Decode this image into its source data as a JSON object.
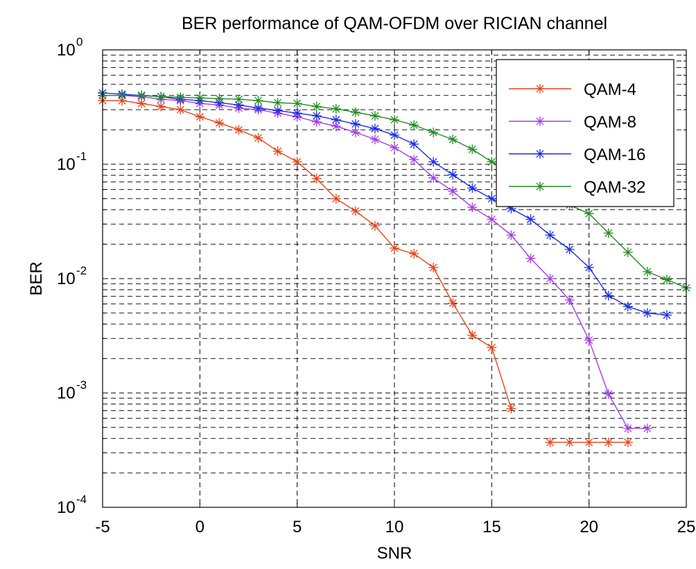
{
  "chart_data": {
    "type": "line",
    "title": "BER performance of QAM-OFDM over RICIAN channel",
    "xlabel": "SNR",
    "ylabel": "BER",
    "xlim": [
      -5,
      25
    ],
    "ylim": [
      0.0001,
      1
    ],
    "yscale": "log",
    "grid": true,
    "legend_position": "top-right",
    "x_ticks": [
      "-5",
      "0",
      "5",
      "10",
      "15",
      "20",
      "25"
    ],
    "y_ticks": [
      {
        "base": "10",
        "exp": "0"
      },
      {
        "base": "10",
        "exp": "-1"
      },
      {
        "base": "10",
        "exp": "-2"
      },
      {
        "base": "10",
        "exp": "-3"
      },
      {
        "base": "10",
        "exp": "-4"
      }
    ],
    "series": [
      {
        "name": "QAM-4",
        "color": "#e8431a",
        "points": [
          [
            -5,
            0.36
          ],
          [
            -4,
            0.36
          ],
          [
            -3,
            0.34
          ],
          [
            -2,
            0.32
          ],
          [
            -1,
            0.3
          ],
          [
            0,
            0.26
          ],
          [
            1,
            0.23
          ],
          [
            2,
            0.2
          ],
          [
            3,
            0.17
          ],
          [
            4,
            0.13
          ],
          [
            5,
            0.105
          ],
          [
            6,
            0.075
          ],
          [
            7,
            0.05
          ],
          [
            8,
            0.039
          ],
          [
            9,
            0.029
          ],
          [
            10,
            0.0185
          ],
          [
            11,
            0.0165
          ],
          [
            12,
            0.0125
          ],
          [
            13,
            0.0061
          ],
          [
            14,
            0.0032
          ],
          [
            15,
            0.0025
          ],
          [
            16,
            0.00073
          ],
          null,
          [
            18,
            0.00037
          ],
          [
            19,
            0.00037
          ],
          [
            20,
            0.00037
          ],
          [
            21,
            0.00037
          ],
          [
            22,
            0.00037
          ]
        ]
      },
      {
        "name": "QAM-8",
        "color": "#a43ee8",
        "points": [
          [
            -5,
            0.4
          ],
          [
            -4,
            0.4
          ],
          [
            -3,
            0.39
          ],
          [
            -2,
            0.37
          ],
          [
            -1,
            0.36
          ],
          [
            0,
            0.34
          ],
          [
            1,
            0.33
          ],
          [
            2,
            0.31
          ],
          [
            3,
            0.3
          ],
          [
            4,
            0.28
          ],
          [
            5,
            0.26
          ],
          [
            6,
            0.235
          ],
          [
            7,
            0.215
          ],
          [
            8,
            0.19
          ],
          [
            9,
            0.165
          ],
          [
            10,
            0.14
          ],
          [
            11,
            0.11
          ],
          [
            12,
            0.076
          ],
          [
            13,
            0.058
          ],
          [
            14,
            0.042
          ],
          [
            15,
            0.033
          ],
          [
            16,
            0.024
          ],
          [
            17,
            0.015
          ],
          [
            18,
            0.01
          ],
          [
            19,
            0.0065
          ],
          [
            20,
            0.0029
          ],
          [
            21,
            0.00098
          ],
          [
            22,
            0.00049
          ],
          [
            23,
            0.00049
          ]
        ]
      },
      {
        "name": "QAM-16",
        "color": "#1a2ce8",
        "points": [
          [
            -5,
            0.42
          ],
          [
            -4,
            0.41
          ],
          [
            -3,
            0.4
          ],
          [
            -2,
            0.39
          ],
          [
            -1,
            0.37
          ],
          [
            0,
            0.36
          ],
          [
            1,
            0.345
          ],
          [
            2,
            0.33
          ],
          [
            3,
            0.31
          ],
          [
            4,
            0.295
          ],
          [
            5,
            0.28
          ],
          [
            6,
            0.265
          ],
          [
            7,
            0.245
          ],
          [
            8,
            0.225
          ],
          [
            9,
            0.205
          ],
          [
            10,
            0.18
          ],
          [
            11,
            0.15
          ],
          [
            12,
            0.105
          ],
          [
            13,
            0.081
          ],
          [
            14,
            0.062
          ],
          [
            15,
            0.05
          ],
          [
            16,
            0.041
          ],
          [
            17,
            0.033
          ],
          [
            18,
            0.024
          ],
          [
            19,
            0.018
          ],
          [
            20,
            0.0125
          ],
          [
            21,
            0.0071
          ],
          [
            22,
            0.0057
          ],
          [
            23,
            0.005
          ],
          [
            24,
            0.0048
          ]
        ]
      },
      {
        "name": "QAM-32",
        "color": "#228b22",
        "points": [
          [
            -5,
            0.4
          ],
          [
            -4,
            0.4
          ],
          [
            -3,
            0.4
          ],
          [
            -2,
            0.39
          ],
          [
            -1,
            0.385
          ],
          [
            0,
            0.38
          ],
          [
            1,
            0.375
          ],
          [
            2,
            0.37
          ],
          [
            3,
            0.36
          ],
          [
            4,
            0.345
          ],
          [
            5,
            0.34
          ],
          [
            6,
            0.32
          ],
          [
            7,
            0.305
          ],
          [
            8,
            0.285
          ],
          [
            9,
            0.265
          ],
          [
            10,
            0.245
          ],
          [
            11,
            0.22
          ],
          [
            12,
            0.19
          ],
          [
            13,
            0.165
          ],
          [
            14,
            0.135
          ],
          [
            15,
            0.105
          ],
          [
            16,
            0.085
          ],
          [
            17,
            0.066
          ],
          [
            18,
            0.052
          ],
          [
            19,
            0.044
          ],
          [
            20,
            0.037
          ],
          [
            21,
            0.025
          ],
          [
            22,
            0.017
          ],
          [
            23,
            0.0115
          ],
          [
            24,
            0.0098
          ],
          [
            25,
            0.0083
          ]
        ]
      }
    ]
  }
}
